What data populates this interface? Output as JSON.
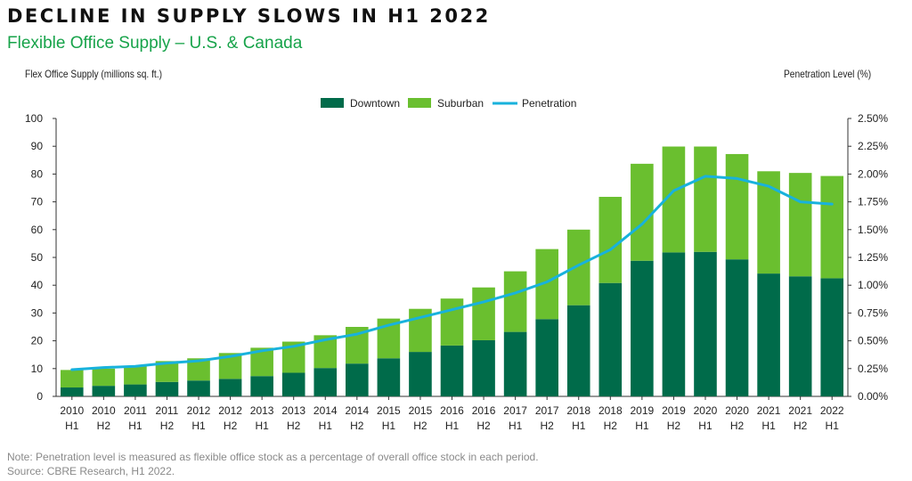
{
  "header": {
    "title": "DECLINE IN SUPPLY SLOWS IN H1 2022",
    "subtitle": "Flexible Office Supply – U.S. & Canada"
  },
  "footer": {
    "note": "Note: Penetration level is measured as flexible office stock as a percentage of overall office stock in each period.",
    "source": "Source: CBRE Research, H1 2022."
  },
  "colors": {
    "downtown": "#006b4a",
    "suburban": "#6abf2f",
    "penetration": "#18b2dc"
  },
  "chart_data": {
    "type": "bar",
    "stacked": true,
    "ylabel": "Flex Office Supply (millions sq. ft.)",
    "y2label": "Penetration Level (%)",
    "ylim": [
      0,
      100
    ],
    "yticks": [
      "0",
      "10",
      "20",
      "30",
      "40",
      "50",
      "60",
      "70",
      "80",
      "90",
      "100"
    ],
    "y2lim": [
      0,
      2.5
    ],
    "y2ticks": [
      "0.00%",
      "0.25%",
      "0.50%",
      "0.75%",
      "1.00%",
      "1.25%",
      "1.50%",
      "1.75%",
      "2.00%",
      "2.25%",
      "2.50%"
    ],
    "legend_position": "top-center",
    "categories": [
      {
        "year": "2010",
        "half": "H1"
      },
      {
        "year": "2010",
        "half": "H2"
      },
      {
        "year": "2011",
        "half": "H1"
      },
      {
        "year": "2011",
        "half": "H2"
      },
      {
        "year": "2012",
        "half": "H1"
      },
      {
        "year": "2012",
        "half": "H2"
      },
      {
        "year": "2013",
        "half": "H1"
      },
      {
        "year": "2013",
        "half": "H2"
      },
      {
        "year": "2014",
        "half": "H1"
      },
      {
        "year": "2014",
        "half": "H2"
      },
      {
        "year": "2015",
        "half": "H1"
      },
      {
        "year": "2015",
        "half": "H2"
      },
      {
        "year": "2016",
        "half": "H1"
      },
      {
        "year": "2016",
        "half": "H2"
      },
      {
        "year": "2017",
        "half": "H1"
      },
      {
        "year": "2017",
        "half": "H2"
      },
      {
        "year": "2018",
        "half": "H1"
      },
      {
        "year": "2018",
        "half": "H2"
      },
      {
        "year": "2019",
        "half": "H1"
      },
      {
        "year": "2019",
        "half": "H2"
      },
      {
        "year": "2020",
        "half": "H1"
      },
      {
        "year": "2020",
        "half": "H2"
      },
      {
        "year": "2021",
        "half": "H1"
      },
      {
        "year": "2021",
        "half": "H2"
      },
      {
        "year": "2022",
        "half": "H1"
      }
    ],
    "series": [
      {
        "name": "Downtown",
        "type": "bar",
        "axis": "left",
        "values": [
          3.2,
          3.8,
          4.3,
          5.2,
          5.7,
          6.3,
          7.3,
          8.5,
          10.2,
          11.8,
          13.7,
          16.0,
          18.3,
          20.2,
          23.2,
          27.8,
          32.8,
          40.8,
          48.8,
          51.8,
          52.0,
          49.3,
          44.2,
          43.2,
          42.5
        ]
      },
      {
        "name": "Suburban",
        "type": "bar",
        "axis": "left",
        "values": [
          6.3,
          6.2,
          6.7,
          7.5,
          8.0,
          9.3,
          10.2,
          11.2,
          11.8,
          13.2,
          14.3,
          15.5,
          16.9,
          19.0,
          21.8,
          25.2,
          27.2,
          31.0,
          34.9,
          38.1,
          37.9,
          37.9,
          36.8,
          37.2,
          36.8
        ]
      },
      {
        "name": "Penetration",
        "type": "line",
        "axis": "right",
        "values": [
          0.24,
          0.26,
          0.27,
          0.3,
          0.32,
          0.36,
          0.41,
          0.45,
          0.51,
          0.56,
          0.64,
          0.71,
          0.78,
          0.85,
          0.93,
          1.03,
          1.18,
          1.32,
          1.55,
          1.85,
          1.98,
          1.96,
          1.89,
          1.75,
          1.73
        ]
      }
    ]
  }
}
